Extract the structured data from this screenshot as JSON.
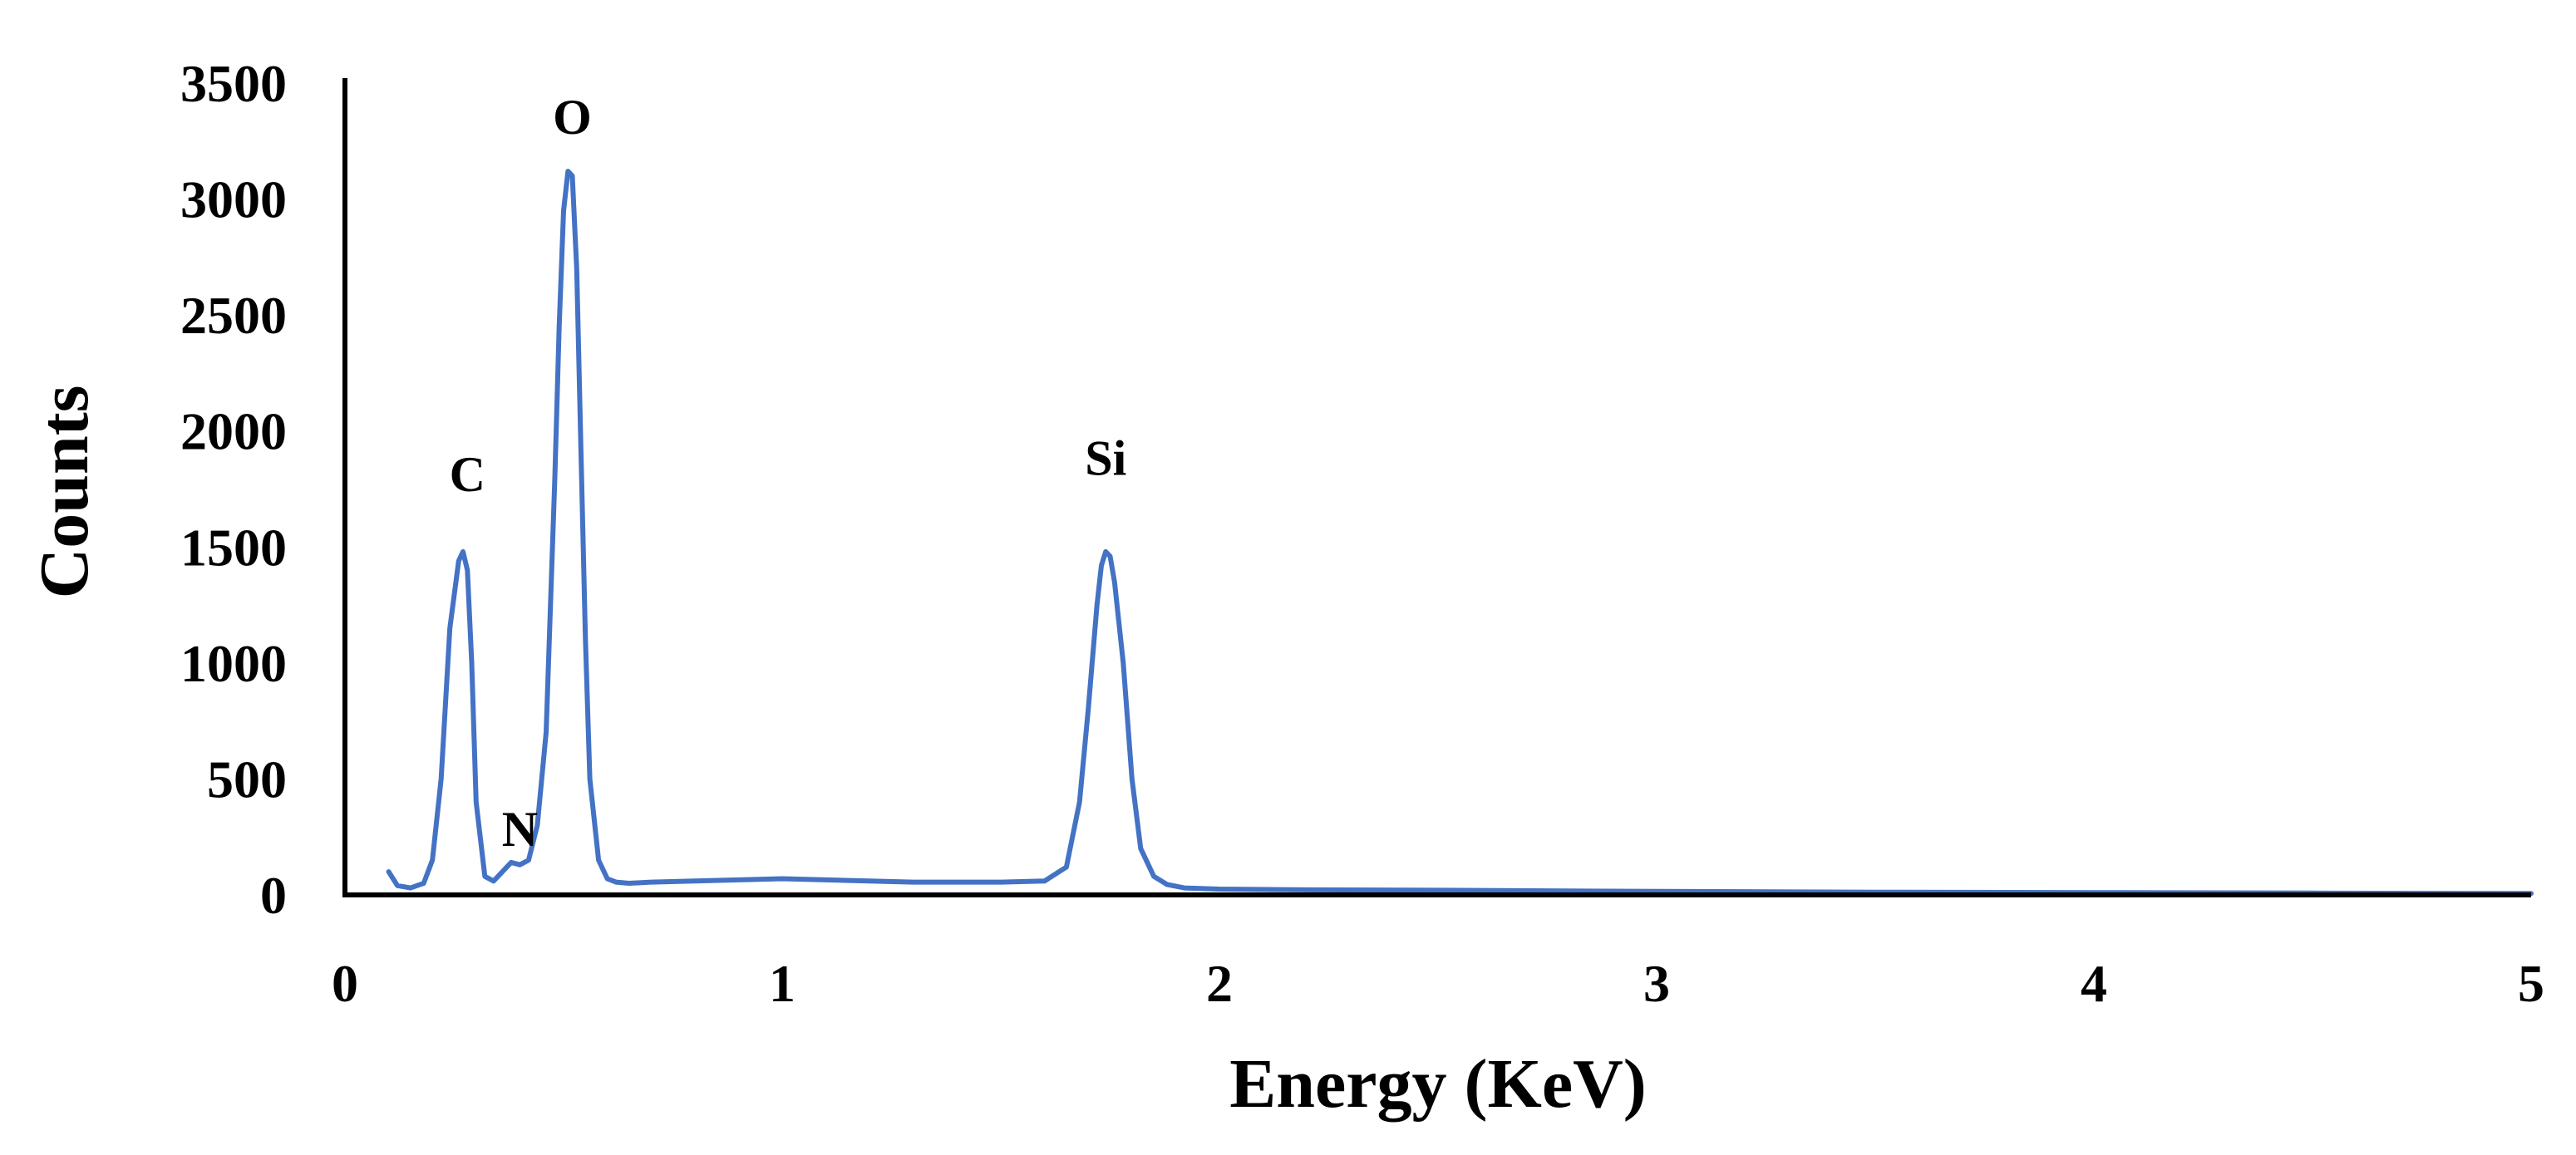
{
  "chart_data": {
    "type": "line",
    "xlabel": "Energy (KeV)",
    "ylabel": "Counts",
    "xlim": [
      0,
      5
    ],
    "ylim": [
      0,
      3500
    ],
    "x_ticks": [
      0,
      1,
      2,
      3,
      4,
      5
    ],
    "x_tick_labels": [
      "0",
      "1",
      "2",
      "3",
      "4",
      "5"
    ],
    "y_ticks": [
      0,
      500,
      1000,
      1500,
      2000,
      2500,
      3000,
      3500
    ],
    "y_tick_labels": [
      "0",
      "500",
      "1000",
      "1500",
      "2000",
      "2500",
      "3000",
      "3500"
    ],
    "grid": false,
    "line_color": "#4472C4",
    "annotations": [
      {
        "text": "C",
        "x": 0.28,
        "y": 1820
      },
      {
        "text": "N",
        "x": 0.4,
        "y": 290
      },
      {
        "text": "O",
        "x": 0.52,
        "y": 3360
      },
      {
        "text": "Si",
        "x": 1.74,
        "y": 1890
      }
    ],
    "series": [
      {
        "x": [
          0.1,
          0.12,
          0.15,
          0.18,
          0.2,
          0.22,
          0.24,
          0.26,
          0.27,
          0.28,
          0.29,
          0.3,
          0.32,
          0.34,
          0.36,
          0.38,
          0.4,
          0.42,
          0.44,
          0.46,
          0.48,
          0.49,
          0.5,
          0.51,
          0.52,
          0.53,
          0.54,
          0.55,
          0.56,
          0.58,
          0.6,
          0.62,
          0.65,
          0.7,
          0.8,
          0.9,
          1.0,
          1.1,
          1.2,
          1.3,
          1.4,
          1.5,
          1.6,
          1.65,
          1.68,
          1.7,
          1.72,
          1.73,
          1.74,
          1.75,
          1.76,
          1.78,
          1.8,
          1.82,
          1.85,
          1.88,
          1.92,
          2.0,
          2.2,
          2.5,
          3.0,
          3.5,
          4.0,
          4.5,
          5.0
        ],
        "y": [
          100,
          40,
          30,
          50,
          150,
          500,
          1150,
          1440,
          1480,
          1400,
          1000,
          400,
          80,
          60,
          100,
          140,
          130,
          150,
          300,
          700,
          1800,
          2450,
          2950,
          3120,
          3100,
          2700,
          1900,
          1100,
          500,
          150,
          70,
          55,
          50,
          55,
          60,
          65,
          70,
          65,
          60,
          55,
          55,
          55,
          60,
          120,
          400,
          800,
          1250,
          1420,
          1480,
          1460,
          1350,
          1000,
          500,
          200,
          80,
          45,
          30,
          25,
          22,
          20,
          15,
          12,
          10,
          8,
          6
        ]
      }
    ]
  }
}
